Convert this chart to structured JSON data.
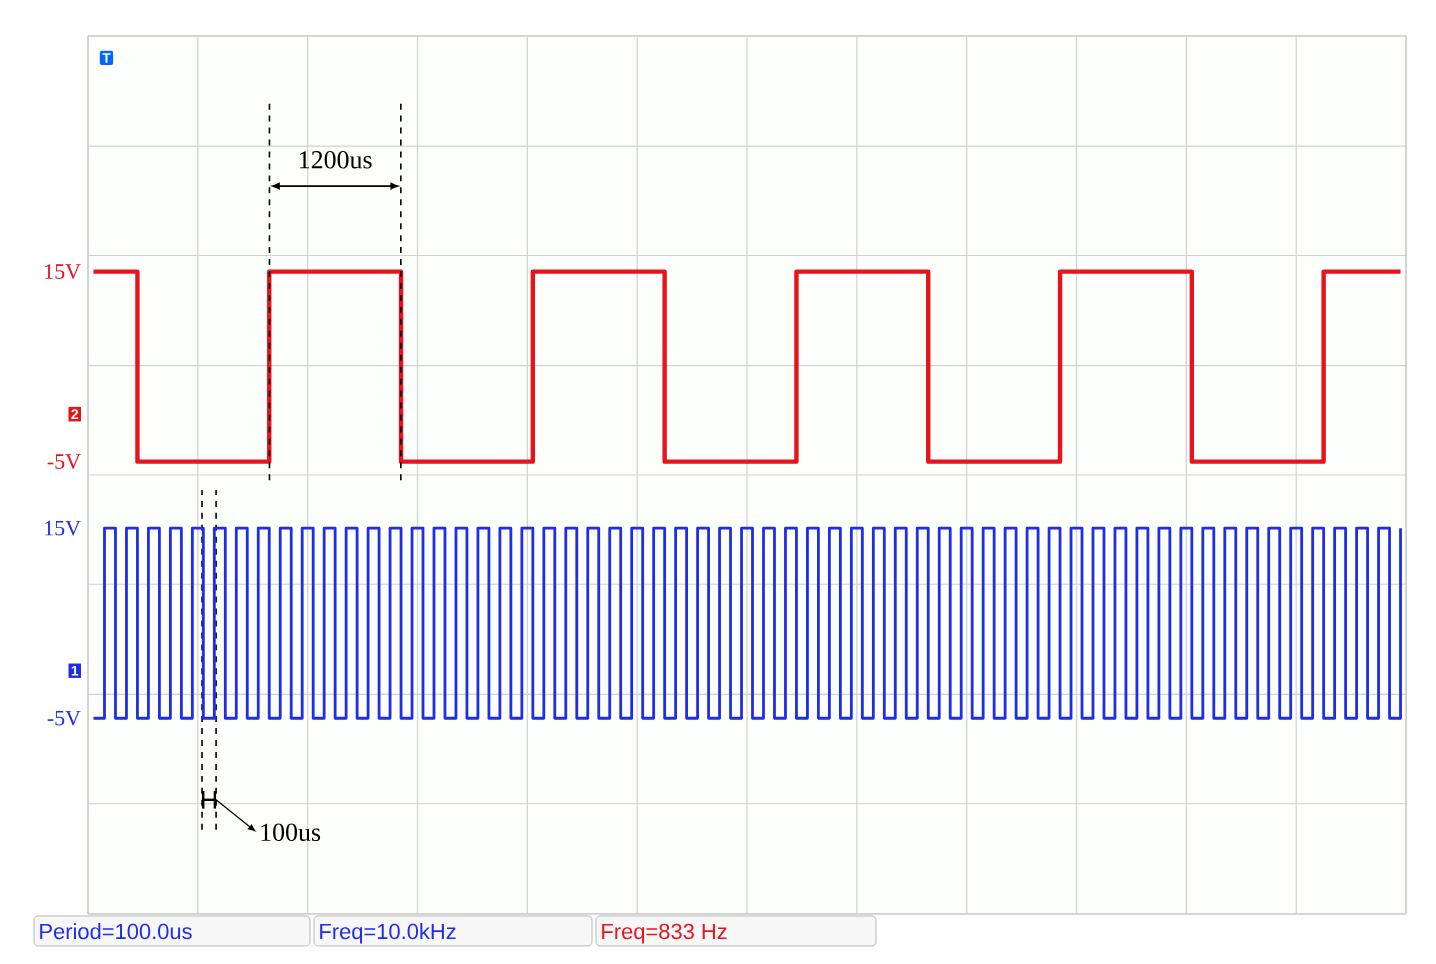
{
  "chart_data": {
    "type": "step",
    "categories": [
      null,
      null,
      null,
      null,
      null,
      null,
      null,
      null,
      null,
      null,
      null,
      null,
      null,
      null,
      null,
      null,
      null,
      null,
      null,
      null,
      null,
      null,
      null,
      null,
      null,
      null,
      null,
      null,
      null,
      null,
      null,
      null,
      null,
      null,
      null,
      null,
      null,
      null,
      null,
      null,
      null,
      null,
      null,
      null,
      null,
      null,
      null,
      null,
      null,
      null,
      null,
      null,
      null,
      null,
      null,
      null,
      null,
      null,
      null,
      null,
      null,
      null,
      null,
      null,
      null,
      null,
      null,
      null,
      null,
      null,
      null,
      null,
      null,
      null,
      null,
      null,
      null,
      null,
      null,
      null,
      null,
      null,
      null,
      null,
      null,
      null,
      null,
      null,
      null,
      null,
      null,
      null,
      null,
      null,
      null,
      null,
      null,
      null,
      null,
      null,
      null,
      null,
      null,
      null,
      null,
      null,
      null,
      null,
      null,
      null,
      null,
      null,
      null,
      null,
      null,
      null,
      null,
      null,
      null,
      null
    ],
    "series": [
      {
        "color": "#e8141b",
        "values": [
          15,
          15,
          15,
          15,
          -5,
          -5,
          -5,
          -5,
          -5,
          -5,
          -5,
          -5,
          -5,
          -5,
          -5,
          -5,
          15,
          15,
          15,
          15,
          15,
          15,
          15,
          15,
          15,
          15,
          15,
          15,
          -5,
          -5,
          -5,
          -5,
          -5,
          -5,
          -5,
          -5,
          -5,
          -5,
          -5,
          -5,
          15,
          15,
          15,
          15,
          15,
          15,
          15,
          15,
          15,
          15,
          15,
          15,
          -5,
          -5,
          -5,
          -5,
          -5,
          -5,
          -5,
          -5,
          -5,
          -5,
          -5,
          -5,
          15,
          15,
          15,
          15,
          15,
          15,
          15,
          15,
          15,
          15,
          15,
          15,
          -5,
          -5,
          -5,
          -5,
          -5,
          -5,
          -5,
          -5,
          -5,
          -5,
          -5,
          -5,
          15,
          15,
          15,
          15,
          15,
          15,
          15,
          15,
          15,
          15,
          15,
          15,
          -5,
          -5,
          -5,
          -5,
          -5,
          -5,
          -5,
          -5,
          -5,
          -5,
          -5,
          -5,
          15,
          15,
          15,
          15,
          15,
          15,
          15,
          15
        ]
      },
      {
        "color": "#1f2de6",
        "axis": "y2",
        "values": [
          -5,
          15,
          -5,
          15,
          -5,
          15,
          -5,
          15,
          -5,
          15,
          -5,
          15,
          -5,
          15,
          -5,
          15,
          -5,
          15,
          -5,
          15,
          -5,
          15,
          -5,
          15,
          -5,
          15,
          -5,
          15,
          -5,
          15,
          -5,
          15,
          -5,
          15,
          -5,
          15,
          -5,
          15,
          -5,
          15,
          -5,
          15,
          -5,
          15,
          -5,
          15,
          -5,
          15,
          -5,
          15,
          -5,
          15,
          -5,
          15,
          -5,
          15,
          -5,
          15,
          -5,
          15,
          -5,
          15,
          -5,
          15,
          -5,
          15,
          -5,
          15,
          -5,
          15,
          -5,
          15,
          -5,
          15,
          -5,
          15,
          -5,
          15,
          -5,
          15,
          -5,
          15,
          -5,
          15,
          -5,
          15,
          -5,
          15,
          -5,
          15,
          -5,
          15,
          -5,
          15,
          -5,
          15,
          -5,
          15,
          -5,
          15,
          -5,
          15,
          -5,
          15,
          -5,
          15,
          -5,
          15,
          -5,
          15,
          -5,
          15,
          -5,
          15,
          -5,
          15,
          -5,
          15,
          -5,
          15
        ]
      }
    ],
    "ylim": [
      -52.6,
      39.8
    ],
    "yticks": [
      {
        "value": 28.2,
        "label": null
      },
      {
        "value": 16.7,
        "label": null
      },
      {
        "value": 15,
        "label": "15V"
      },
      {
        "value": 5.1,
        "label": null
      },
      {
        "value": -5,
        "label": "-5V"
      },
      {
        "value": -6.4,
        "label": null
      },
      {
        "value": -17.9,
        "label": null
      },
      {
        "value": -29.5,
        "label": null
      },
      {
        "value": -41.0,
        "label": null
      }
    ],
    "y2lim": [
      -25.6,
      66.8
    ],
    "y2ticks": [
      {
        "value": 15,
        "label": "15V"
      },
      {
        "value": -5,
        "label": "-5V"
      }
    ],
    "grid": true,
    "tick_labels": "y",
    "annotations": [
      "1200us",
      "100us",
      "T",
      "2",
      "1",
      "Period=100.0us",
      "Freq=10.0kHz",
      "Freq=833 Hz"
    ]
  }
}
